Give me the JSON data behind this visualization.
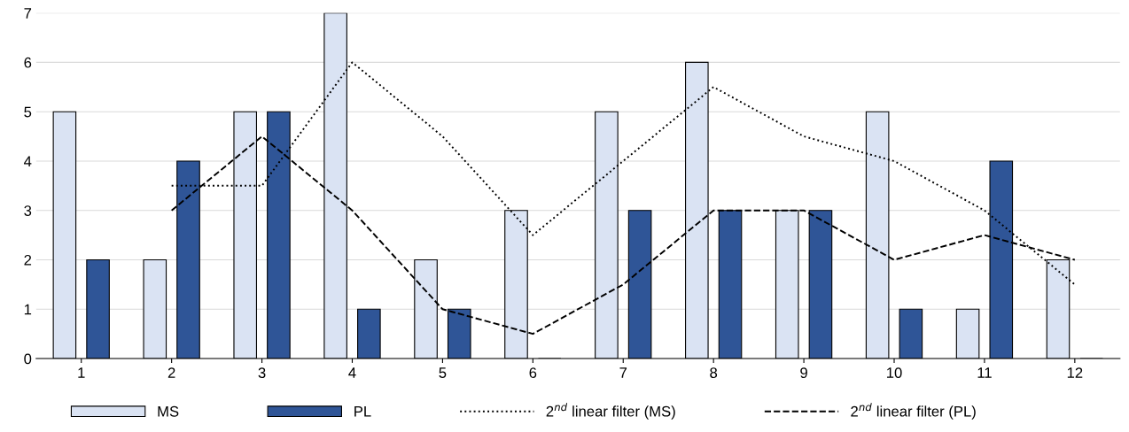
{
  "chart_data": {
    "type": "bar",
    "categories": [
      "1",
      "2",
      "3",
      "4",
      "5",
      "6",
      "7",
      "8",
      "9",
      "10",
      "11",
      "12"
    ],
    "series": [
      {
        "name": "MS",
        "color": "#dae3f3",
        "values": [
          5,
          2,
          5,
          7,
          2,
          3,
          5,
          6,
          3,
          5,
          1,
          2
        ]
      },
      {
        "name": "PL",
        "color": "#2f5597",
        "values": [
          2,
          4,
          5,
          1,
          1,
          0,
          3,
          3,
          3,
          1,
          4,
          0
        ]
      },
      {
        "name": "2$^{nd}$ linear filter (MS)",
        "type": "line",
        "color": "#000000",
        "line_style": "dotted",
        "values": [
          null,
          3.5,
          3.5,
          6,
          4.5,
          2.5,
          4,
          5.5,
          4.5,
          4,
          3,
          1.5
        ]
      },
      {
        "name": "2$^{nd}$ linear filter (PL)",
        "type": "line",
        "color": "#000000",
        "line_style": "dashed",
        "values": [
          null,
          3,
          4.5,
          3,
          1,
          0.5,
          1.5,
          3,
          3,
          2,
          2.5,
          2
        ]
      }
    ],
    "ylim": [
      0,
      7
    ],
    "yticks": [
      0,
      1,
      2,
      3,
      4,
      5,
      6,
      7
    ],
    "grid": "y",
    "legend": "bottom",
    "marker": "none"
  }
}
